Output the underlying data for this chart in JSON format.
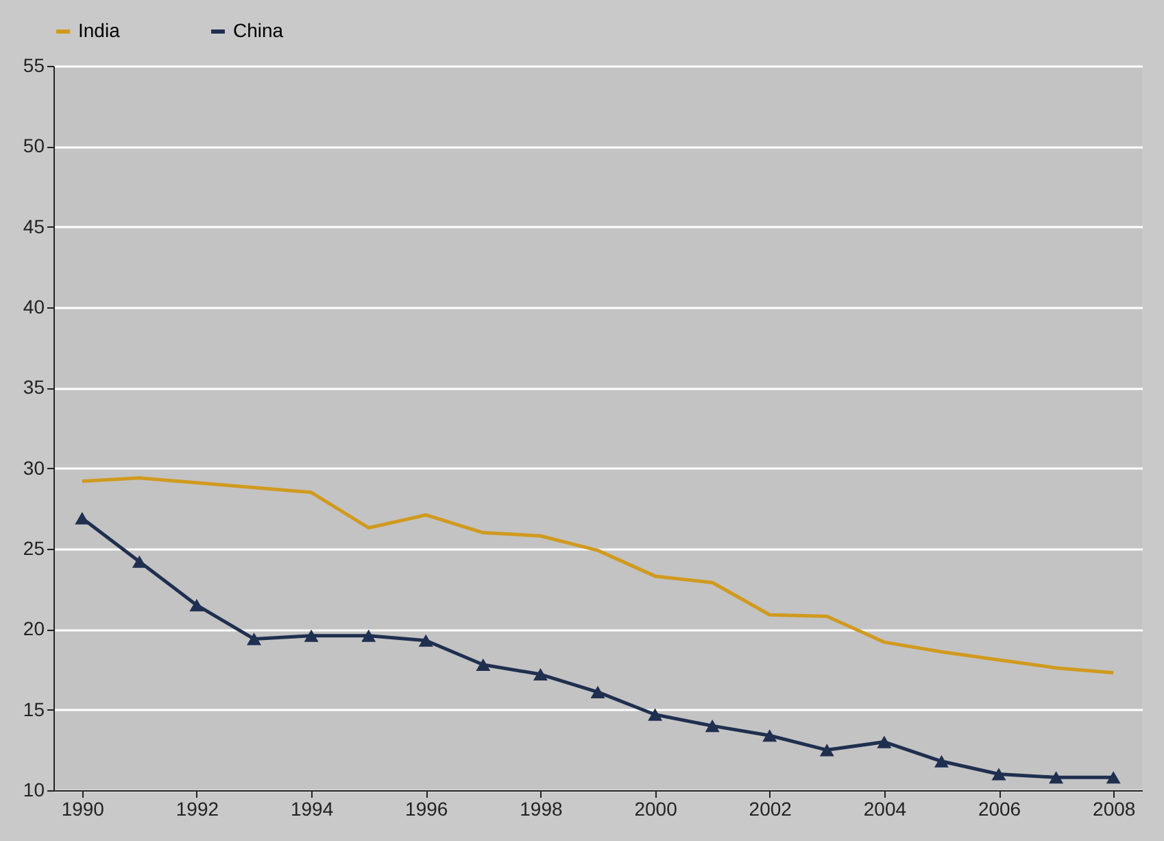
{
  "chart_data": {
    "type": "line",
    "x": [
      1990,
      1991,
      1992,
      1993,
      1994,
      1995,
      1996,
      1997,
      1998,
      1999,
      2000,
      2001,
      2002,
      2003,
      2004,
      2005,
      2006,
      2007,
      2008
    ],
    "series": [
      {
        "name": "India",
        "color": "#d19a1e",
        "marker": "none",
        "values": [
          29.2,
          29.4,
          29.1,
          28.8,
          28.5,
          26.3,
          27.1,
          26.0,
          25.8,
          24.9,
          23.3,
          22.9,
          20.9,
          20.8,
          19.2,
          18.6,
          18.1,
          17.6,
          17.3
        ]
      },
      {
        "name": "China",
        "color": "#1f2f4f",
        "marker": "triangle",
        "values": [
          26.9,
          24.2,
          21.5,
          19.4,
          19.6,
          19.6,
          19.3,
          17.8,
          17.2,
          16.1,
          14.7,
          14.0,
          13.4,
          12.5,
          13.0,
          11.8,
          11.0,
          10.8,
          10.8
        ]
      }
    ],
    "xlim": [
      1989.5,
      2008.5
    ],
    "xticks": [
      1990,
      1992,
      1994,
      1996,
      1998,
      2000,
      2002,
      2004,
      2006,
      2008
    ],
    "ylim": [
      10,
      55
    ],
    "yticks": [
      10,
      15,
      20,
      25,
      30,
      35,
      40,
      45,
      50,
      55
    ],
    "grid": "y",
    "legend": "top"
  }
}
